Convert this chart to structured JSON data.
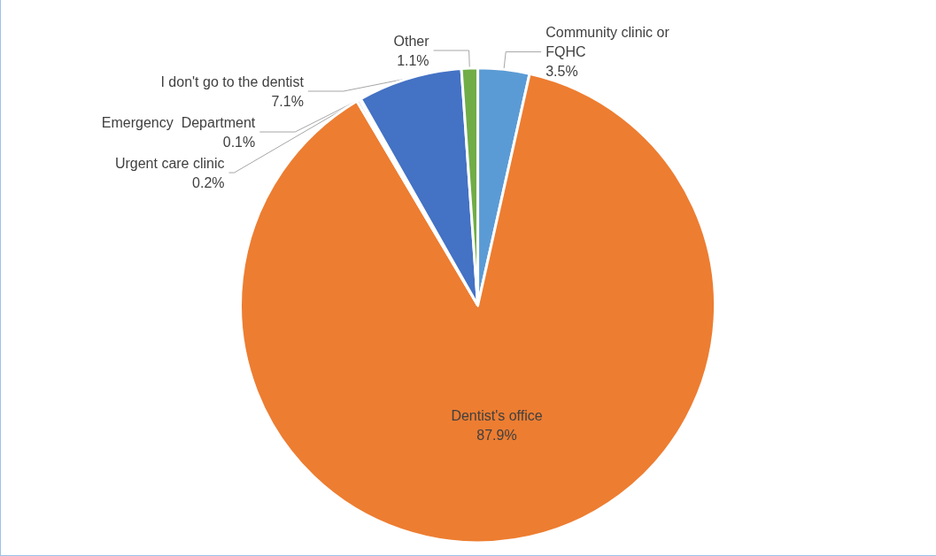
{
  "chart_data": {
    "type": "pie",
    "categories": [
      "Community clinic or FQHC",
      "Dentist's office",
      "Urgent care clinic",
      "Emergency  Department",
      "I don't go to the dentist",
      "Other"
    ],
    "values": [
      3.5,
      87.9,
      0.2,
      0.1,
      7.1,
      1.1
    ],
    "value_labels": [
      "3.5%",
      "87.9%",
      "0.2%",
      "0.1%",
      "7.1%",
      "1.1%"
    ],
    "colors": [
      "#5b9bd5",
      "#ed7d31",
      "#a5a5a5",
      "#ffc000",
      "#4472c4",
      "#70ad47"
    ],
    "legend": false
  }
}
